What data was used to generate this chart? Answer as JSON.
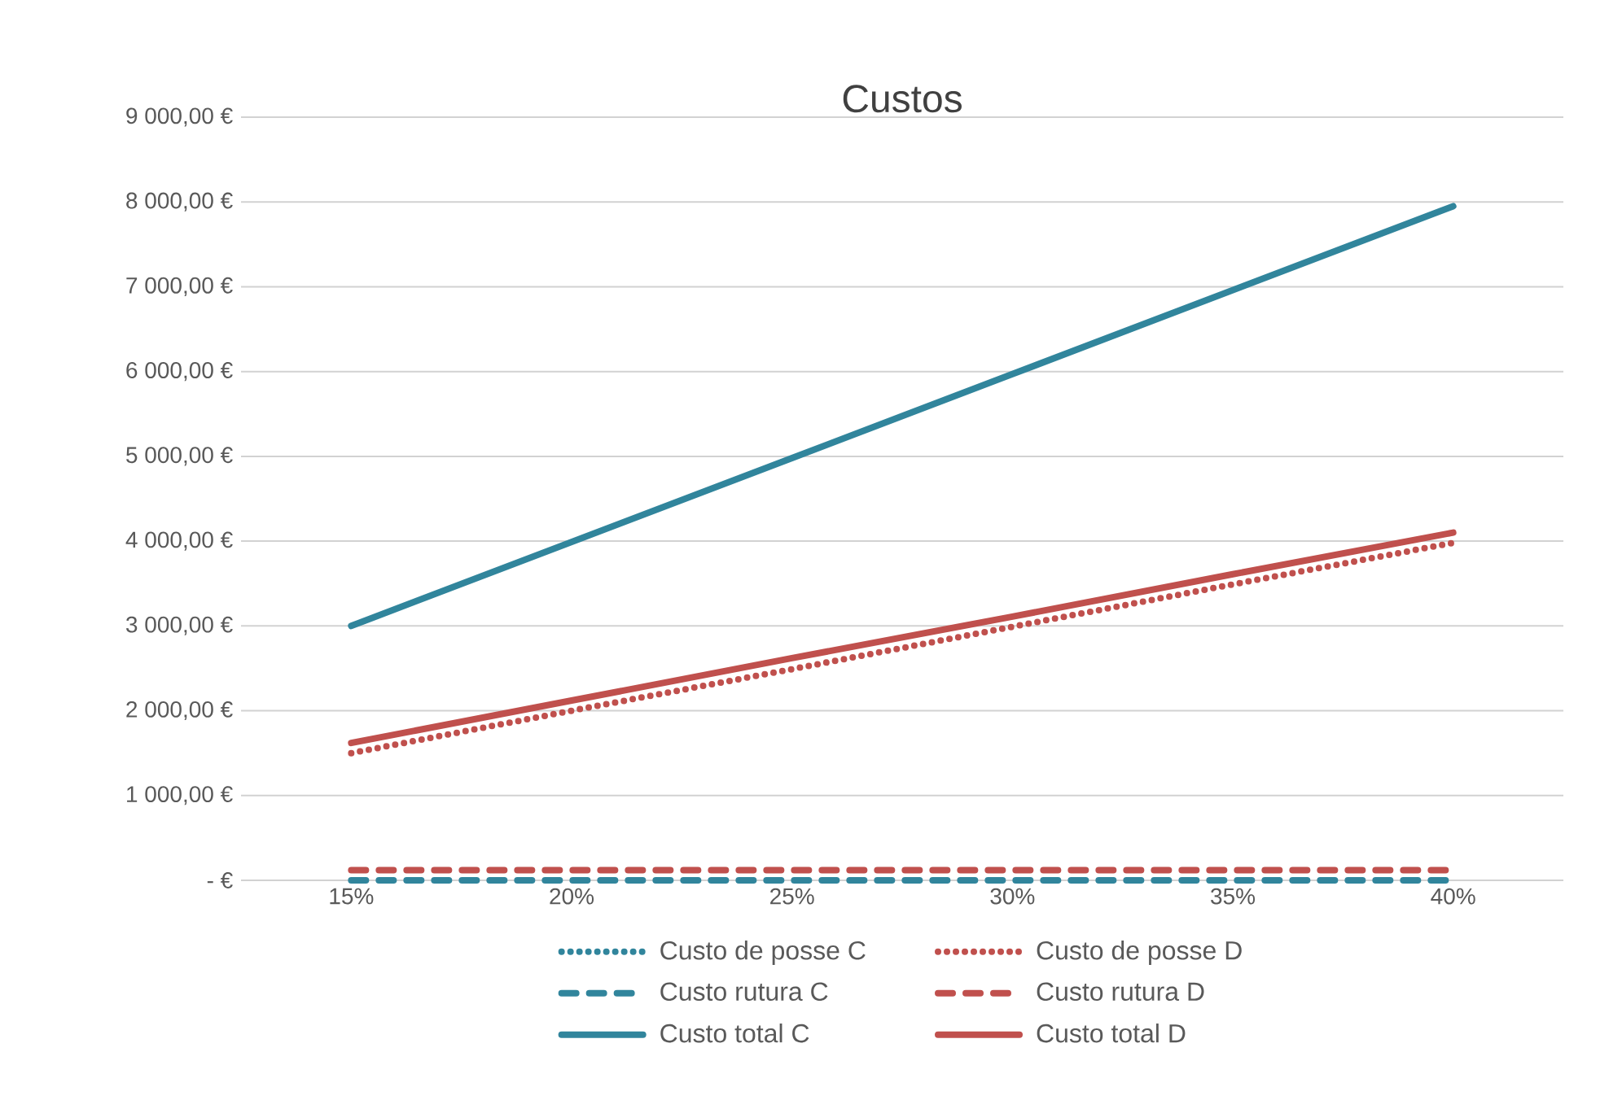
{
  "chart_data": {
    "type": "line",
    "title": "Custos",
    "categories": [
      "15%",
      "20%",
      "25%",
      "30%",
      "35%",
      "40%"
    ],
    "ylim": [
      0,
      9000
    ],
    "yticks": [
      {
        "value": 0,
        "label": "-  €"
      },
      {
        "value": 1000,
        "label": "1 000,00 €"
      },
      {
        "value": 2000,
        "label": "2 000,00 €"
      },
      {
        "value": 3000,
        "label": "3 000,00 €"
      },
      {
        "value": 4000,
        "label": "4 000,00 €"
      },
      {
        "value": 5000,
        "label": "5 000,00 €"
      },
      {
        "value": 6000,
        "label": "6 000,00 €"
      },
      {
        "value": 7000,
        "label": "7 000,00 €"
      },
      {
        "value": 8000,
        "label": "8 000,00 €"
      },
      {
        "value": 9000,
        "label": "9 000,00 €"
      }
    ],
    "grid": "y",
    "legend": "bottom",
    "series": [
      {
        "name": "Custo de posse  C",
        "color": "#31859c",
        "line_style": "dotted",
        "values": [
          null,
          null,
          null,
          null,
          null,
          null
        ]
      },
      {
        "name": "Custo de posse D",
        "color": "#c0504d",
        "line_style": "dotted",
        "values": [
          1500,
          2000,
          2490,
          2990,
          3490,
          3980
        ]
      },
      {
        "name": "Custo rutura  C",
        "color": "#31859c",
        "line_style": "dashed",
        "values": [
          0,
          0,
          0,
          0,
          0,
          0
        ]
      },
      {
        "name": "Custo rutura D",
        "color": "#c0504d",
        "line_style": "dashed",
        "values": [
          120,
          120,
          120,
          120,
          120,
          120
        ]
      },
      {
        "name": "Custo total C",
        "color": "#31859c",
        "line_style": "solid",
        "values": [
          3000,
          3990,
          4980,
          5970,
          6960,
          7950
        ]
      },
      {
        "name": "Custo total D",
        "color": "#c0504d",
        "line_style": "solid",
        "values": [
          1620,
          2120,
          2620,
          3110,
          3610,
          4100
        ]
      }
    ]
  }
}
